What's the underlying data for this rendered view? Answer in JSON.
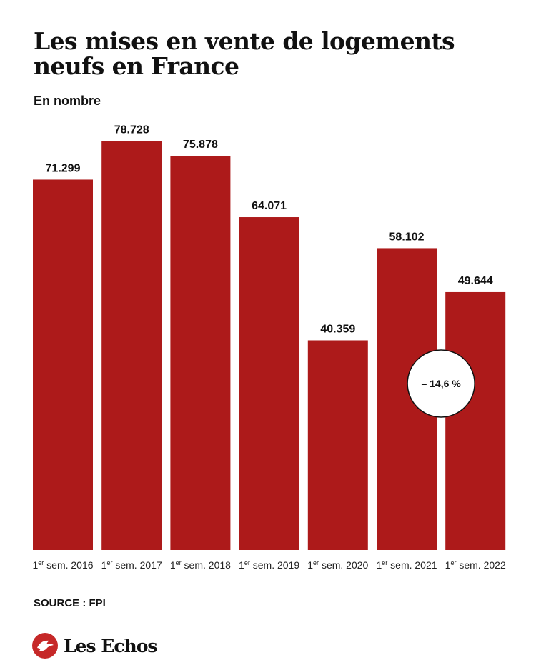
{
  "header": {
    "title": "Les mises en vente de logements neufs en France",
    "subtitle": "En nombre"
  },
  "chart_data": {
    "type": "bar",
    "title": "Les mises en vente de logements neufs en France",
    "subtitle": "En nombre",
    "categories": [
      {
        "sup": "er",
        "prefix": "1",
        "label": "sem. 2016"
      },
      {
        "sup": "er",
        "prefix": "1",
        "label": "sem. 2017"
      },
      {
        "sup": "er",
        "prefix": "1",
        "label": "sem. 2018"
      },
      {
        "sup": "er",
        "prefix": "1",
        "label": "sem. 2019"
      },
      {
        "sup": "er",
        "prefix": "1",
        "label": "sem. 2020"
      },
      {
        "sup": "er",
        "prefix": "1",
        "label": "sem. 2021"
      },
      {
        "sup": "er",
        "prefix": "1",
        "label": "sem. 2022"
      }
    ],
    "values": [
      71299,
      78728,
      75878,
      64071,
      40359,
      58102,
      49644
    ],
    "value_labels": [
      "71.299",
      "78.728",
      "75.878",
      "64.071",
      "40.359",
      "58.102",
      "49.644"
    ],
    "ylim": [
      0,
      82500
    ],
    "grid": false,
    "annotation": {
      "text": "– 14,6 %",
      "between": [
        5,
        6
      ]
    },
    "bar_color": "#ad1a1a"
  },
  "footer": {
    "source": "SOURCE : FPI",
    "brand": "Les Echos",
    "brand_color": "#c62828"
  }
}
